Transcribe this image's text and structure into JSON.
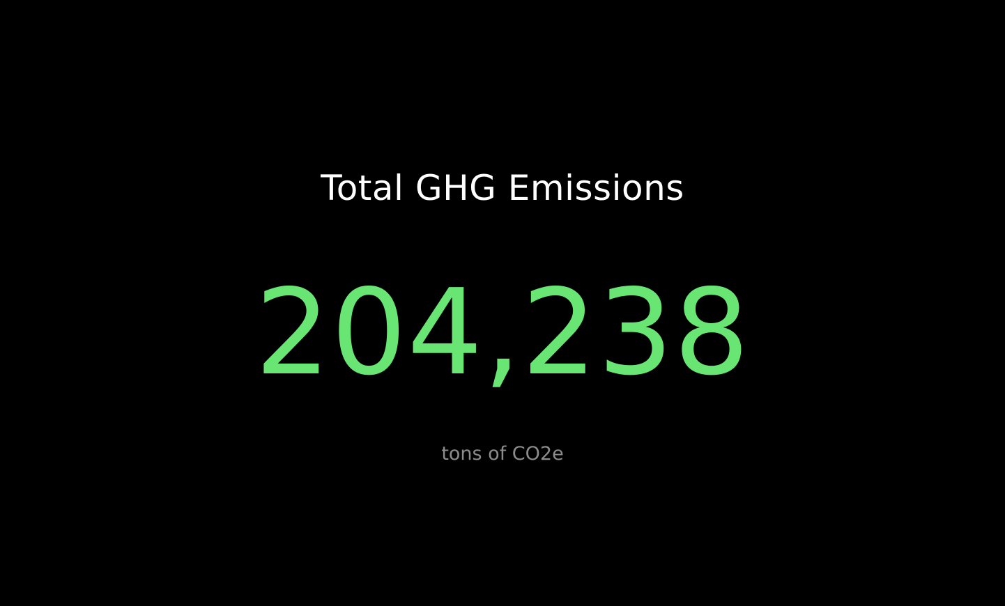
{
  "metric": {
    "title": "Total GHG Emissions",
    "value": "204,238",
    "unit": "tons of CO2e"
  },
  "colors": {
    "background": "#000000",
    "title": "#ffffff",
    "value": "#69e574",
    "unit": "#8c8c8c"
  }
}
